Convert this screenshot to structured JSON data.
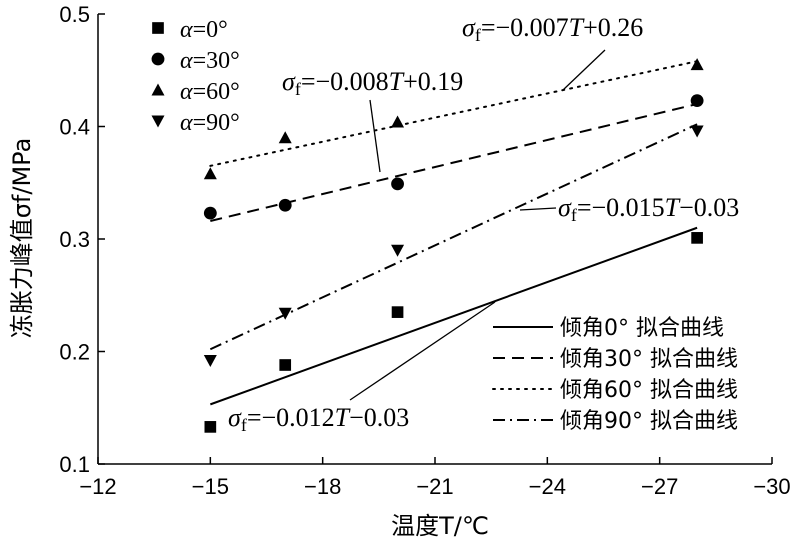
{
  "chart_data": {
    "type": "scatter",
    "title": "",
    "xlabel": "温度T/℃",
    "ylabel": "冻胀力峰值σf/MPa",
    "xlim": [
      -12,
      -30
    ],
    "ylim": [
      0.1,
      0.5
    ],
    "x_ticks": [
      -12,
      -15,
      -18,
      -21,
      -24,
      -27,
      -30
    ],
    "y_ticks": [
      0.1,
      0.2,
      0.3,
      0.4,
      0.5
    ],
    "x_tick_labels": [
      "−12",
      "−15",
      "−18",
      "−21",
      "−24",
      "−27",
      "−30"
    ],
    "y_tick_labels": [
      "0.1",
      "0.2",
      "0.3",
      "0.4",
      "0.5"
    ],
    "grid": false,
    "series": [
      {
        "name": "α=0°",
        "marker": "square",
        "x": [
          -15,
          -17,
          -20,
          -28
        ],
        "y": [
          0.133,
          0.188,
          0.235,
          0.301
        ]
      },
      {
        "name": "α=30°",
        "marker": "circle",
        "x": [
          -15,
          -17,
          -20,
          -28
        ],
        "y": [
          0.323,
          0.33,
          0.349,
          0.423
        ]
      },
      {
        "name": "α=60°",
        "marker": "triangle-up",
        "x": [
          -15,
          -17,
          -20,
          -28
        ],
        "y": [
          0.358,
          0.39,
          0.404,
          0.455
        ]
      },
      {
        "name": "α=90°",
        "marker": "triangle-down",
        "x": [
          -15,
          -17,
          -20,
          -28
        ],
        "y": [
          0.192,
          0.234,
          0.29,
          0.396
        ]
      }
    ],
    "fits": [
      {
        "name": "倾角0° 拟合曲线",
        "style": "solid",
        "x": [
          -15,
          -28
        ],
        "y": [
          0.153,
          0.31
        ]
      },
      {
        "name": "倾角30° 拟合曲线",
        "style": "dashed",
        "x": [
          -15,
          -28
        ],
        "y": [
          0.316,
          0.42
        ]
      },
      {
        "name": "倾角60° 拟合曲线",
        "style": "dotted",
        "x": [
          -15,
          -28
        ],
        "y": [
          0.365,
          0.458
        ]
      },
      {
        "name": "倾角90° 拟合曲线",
        "style": "dashdot",
        "x": [
          -15,
          -28
        ],
        "y": [
          0.202,
          0.402
        ]
      }
    ],
    "annotations": [
      {
        "text": "σf=−0.007T+0.26",
        "point": [
          -25.2,
          0.444
        ]
      },
      {
        "text": "σf=−0.008T+0.19",
        "point": [
          -19.5,
          0.355
        ]
      },
      {
        "text": "σf=−0.015T−0.03",
        "point": [
          -22.9,
          0.326
        ]
      },
      {
        "text": "σf=−0.012T−0.03",
        "point": [
          -22.5,
          0.244
        ]
      }
    ],
    "legend_location": "top-left",
    "fit_legend_location": "bottom-right"
  }
}
